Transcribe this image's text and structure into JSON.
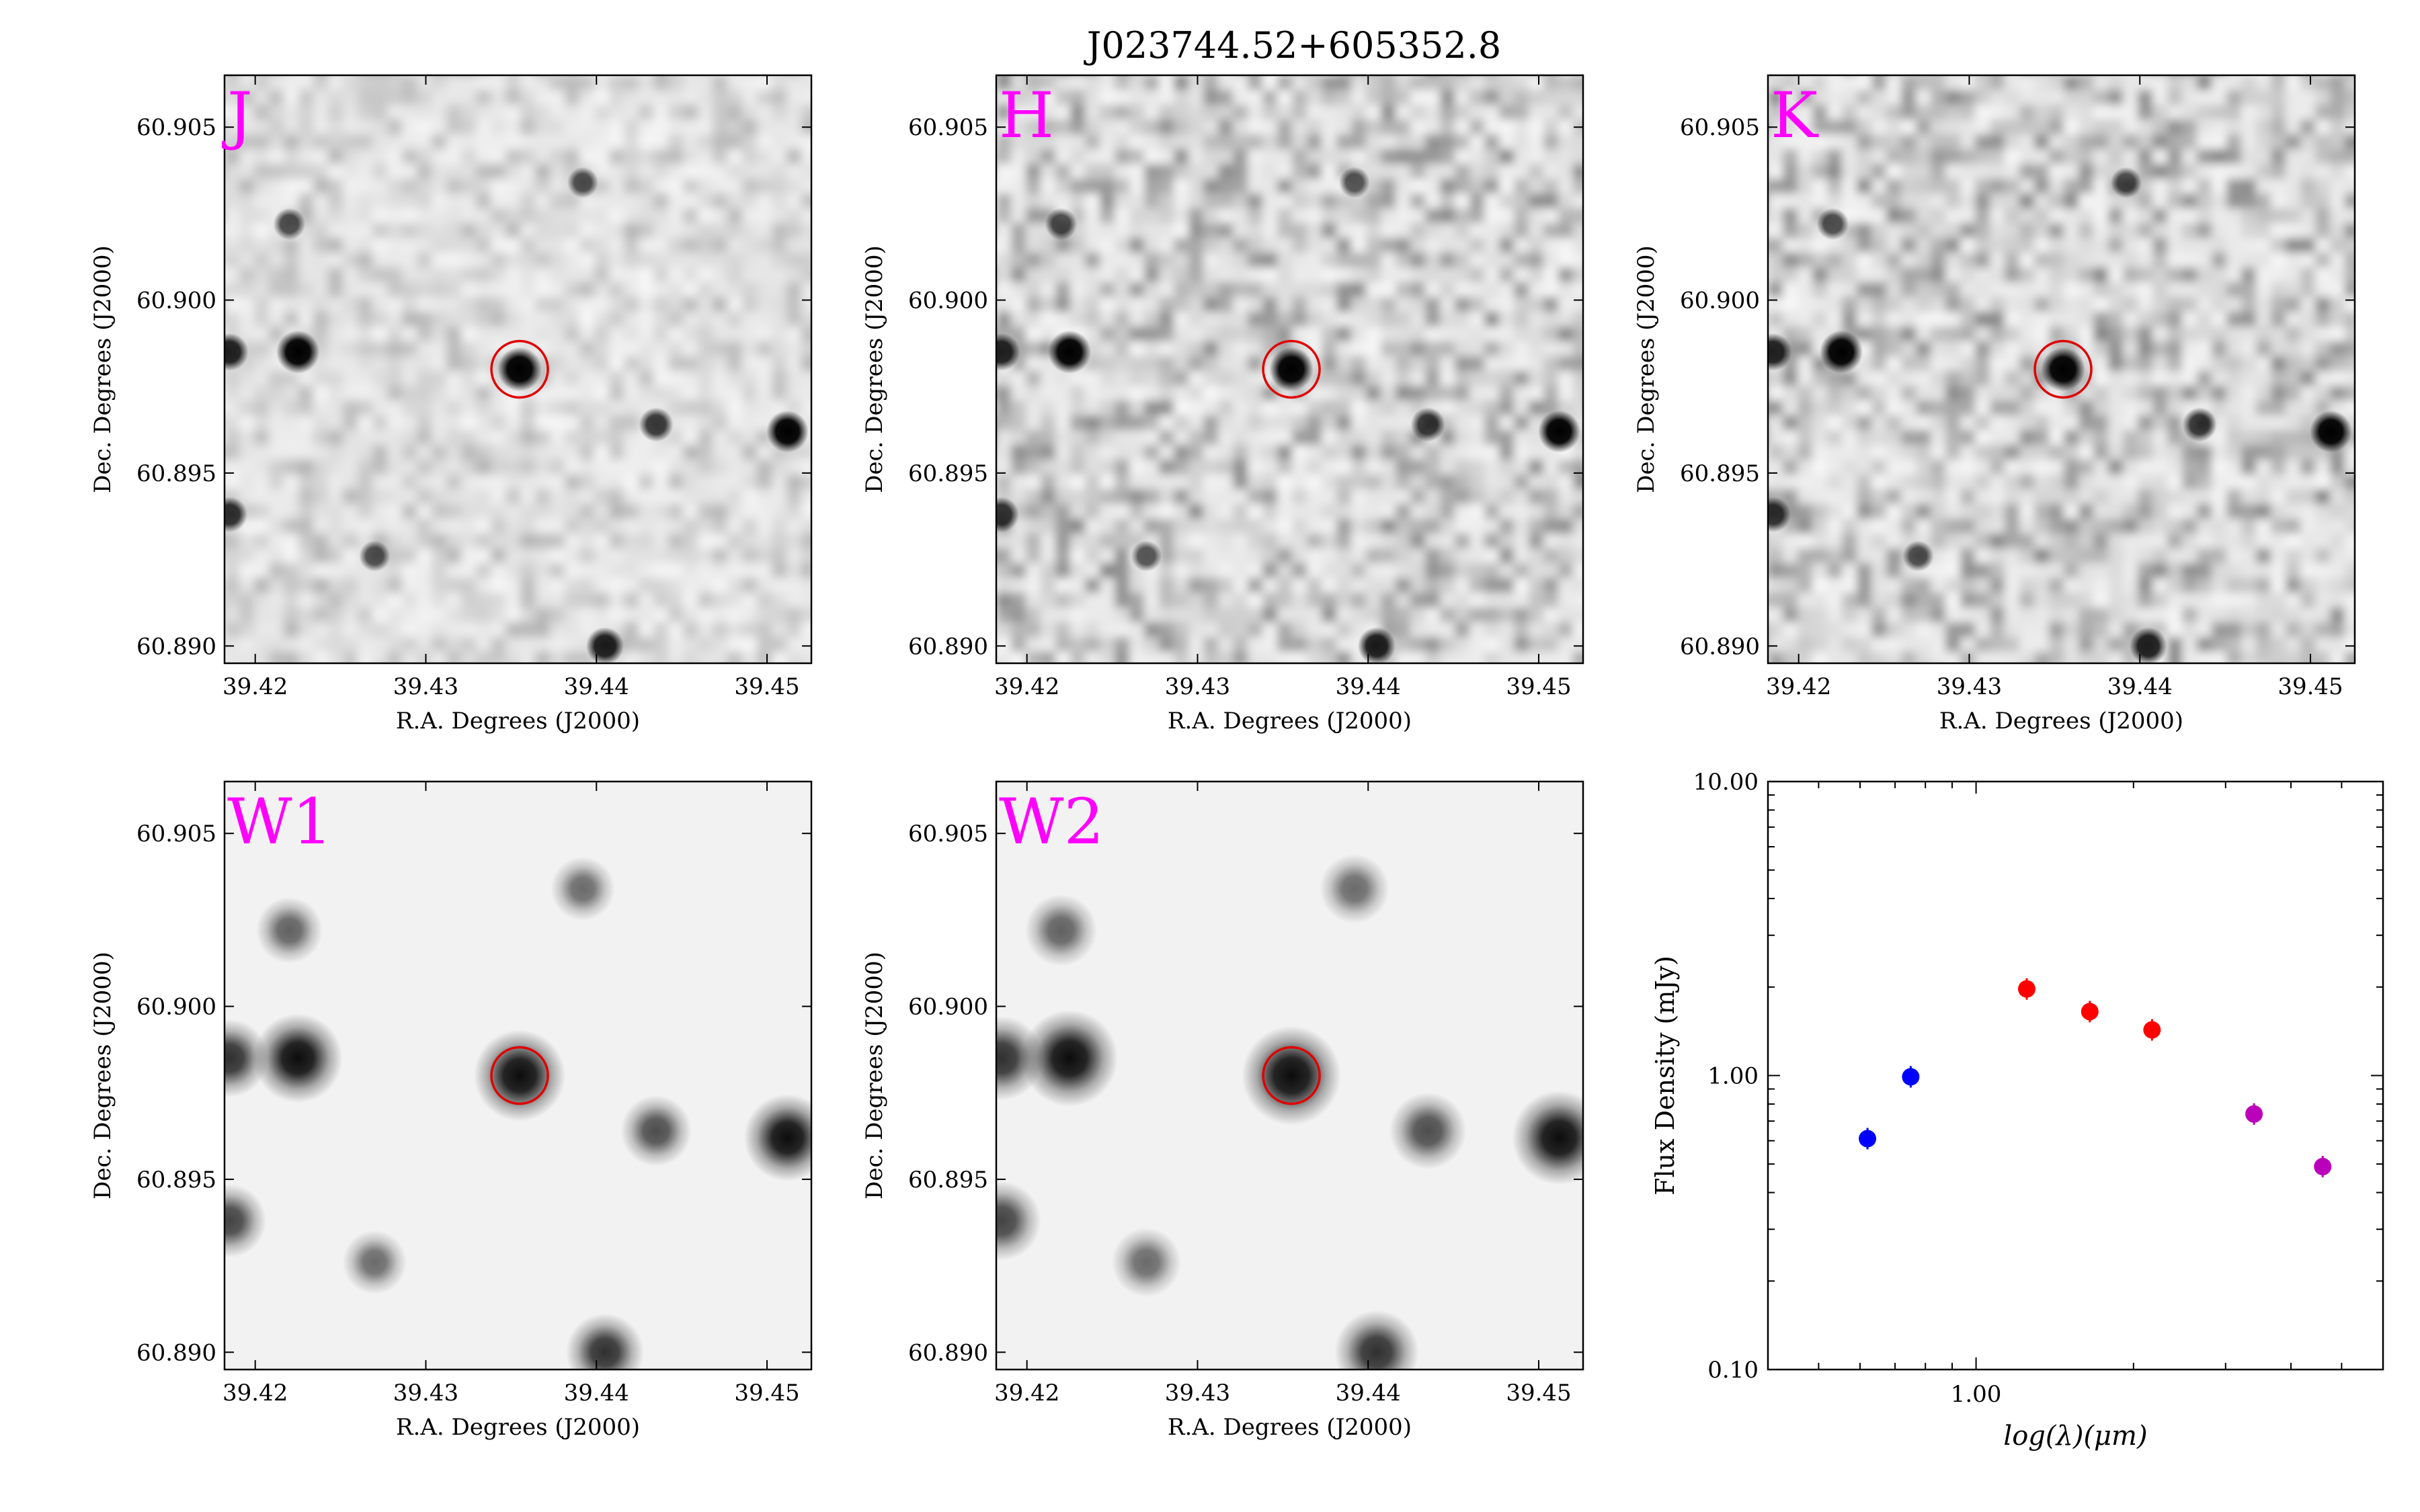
{
  "figure": {
    "title": "J023744.52+605352.8"
  },
  "images": [
    {
      "band": "J",
      "blob_scale": 1.0,
      "noise": 0.35,
      "blur": 1.1,
      "smooth": false,
      "xlabel": "R.A. Degrees (J2000)",
      "ylabel": "Dec. Degrees (J2000)",
      "xticks": [
        "39.42",
        "39.43",
        "39.44",
        "39.45"
      ],
      "yticks": [
        "60.905",
        "60.900",
        "60.895",
        "60.890"
      ]
    },
    {
      "band": "H",
      "blob_scale": 1.0,
      "noise": 0.6,
      "blur": 1.0,
      "smooth": false,
      "xlabel": "R.A. Degrees (J2000)",
      "ylabel": "Dec. Degrees (J2000)",
      "xticks": [
        "39.42",
        "39.43",
        "39.44",
        "39.45"
      ],
      "yticks": [
        "60.905",
        "60.900",
        "60.895",
        "60.890"
      ]
    },
    {
      "band": "K",
      "blob_scale": 1.0,
      "noise": 0.6,
      "blur": 1.0,
      "smooth": false,
      "xlabel": "R.A. Degrees (J2000)",
      "ylabel": "Dec. Degrees (J2000)",
      "xticks": [
        "39.42",
        "39.43",
        "39.44",
        "39.45"
      ],
      "yticks": [
        "60.905",
        "60.900",
        "60.895",
        "60.890"
      ]
    },
    {
      "band": "W1",
      "blob_scale": 2.4,
      "noise": 0.0,
      "blur": 0,
      "smooth": true,
      "xlabel": "R.A. Degrees (J2000)",
      "ylabel": "Dec. Degrees (J2000)",
      "xticks": [
        "39.42",
        "39.43",
        "39.44",
        "39.45"
      ],
      "yticks": [
        "60.905",
        "60.900",
        "60.895",
        "60.890"
      ]
    },
    {
      "band": "W2",
      "blob_scale": 2.6,
      "noise": 0.0,
      "blur": 0,
      "smooth": true,
      "xlabel": "R.A. Degrees (J2000)",
      "ylabel": "Dec. Degrees (J2000)",
      "xticks": [
        "39.42",
        "39.43",
        "39.44",
        "39.45"
      ],
      "yticks": [
        "60.905",
        "60.900",
        "60.895",
        "60.890"
      ]
    }
  ],
  "sky": {
    "ra_range": [
      39.4182,
      39.4526
    ],
    "dec_range": [
      60.8895,
      60.9065
    ],
    "target": {
      "ra": 39.4355,
      "dec": 60.898
    },
    "marker_color": "#e00000",
    "sources": [
      {
        "ra": 39.4355,
        "dec": 60.898,
        "flux": 1.0
      },
      {
        "ra": 39.4225,
        "dec": 60.8985,
        "flux": 0.95
      },
      {
        "ra": 39.4185,
        "dec": 60.8985,
        "flux": 0.7
      },
      {
        "ra": 39.4512,
        "dec": 60.8962,
        "flux": 0.9
      },
      {
        "ra": 39.4435,
        "dec": 60.8964,
        "flux": 0.55
      },
      {
        "ra": 39.4185,
        "dec": 60.8938,
        "flux": 0.6
      },
      {
        "ra": 39.427,
        "dec": 60.8926,
        "flux": 0.4
      },
      {
        "ra": 39.4405,
        "dec": 60.89,
        "flux": 0.7
      },
      {
        "ra": 39.422,
        "dec": 60.9022,
        "flux": 0.45
      },
      {
        "ra": 39.4392,
        "dec": 60.9034,
        "flux": 0.4
      }
    ]
  },
  "chart_data": {
    "type": "scatter",
    "title": "",
    "xlabel": "log(λ)(μm)",
    "ylabel": "Flux Density (mJy)",
    "xscale": "log",
    "yscale": "log",
    "xlim": [
      0.4,
      6.0
    ],
    "ylim": [
      0.1,
      10.0
    ],
    "yticklabels": [
      "10.00",
      "1.00",
      "0.10"
    ],
    "xticklabels": [
      "1.00"
    ],
    "series": [
      {
        "color": "#0000ff",
        "x": [
          0.62,
          0.75
        ],
        "y": [
          0.61,
          0.99
        ]
      },
      {
        "color": "#ff0000",
        "x": [
          1.25,
          1.65,
          2.17
        ],
        "y": [
          1.97,
          1.65,
          1.43
        ]
      },
      {
        "color": "#bb00bb",
        "x": [
          3.4,
          4.6
        ],
        "y": [
          0.74,
          0.49
        ]
      }
    ]
  }
}
